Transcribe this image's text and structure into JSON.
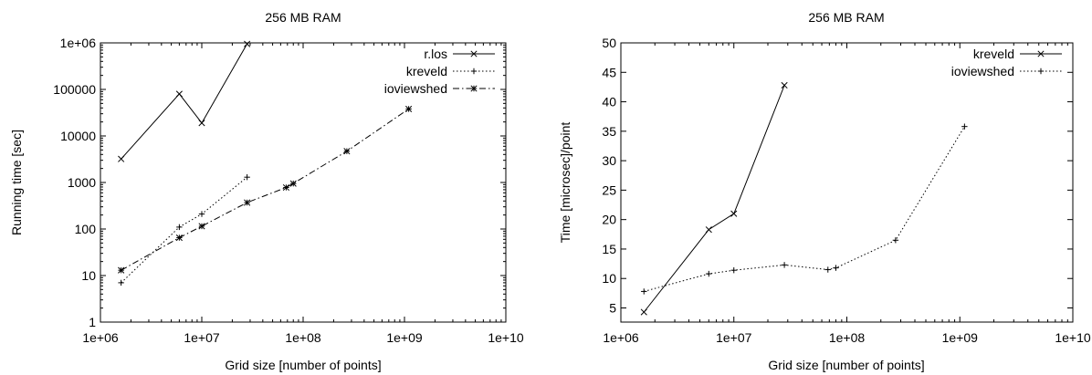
{
  "chart_data": [
    {
      "type": "line",
      "title": "256 MB RAM",
      "xlabel": "Grid size [number of points]",
      "ylabel": "Running time [sec]",
      "xscale": "log",
      "yscale": "log",
      "xlim": [
        1000000,
        10000000000
      ],
      "ylim": [
        1,
        1000000
      ],
      "xticks": [
        {
          "value": 1000000,
          "label": "1e+06"
        },
        {
          "value": 10000000,
          "label": "1e+07"
        },
        {
          "value": 100000000,
          "label": "1e+08"
        },
        {
          "value": 1000000000,
          "label": "1e+09"
        },
        {
          "value": 10000000000,
          "label": "1e+10"
        }
      ],
      "yticks": [
        {
          "value": 1,
          "label": "1"
        },
        {
          "value": 10,
          "label": "10"
        },
        {
          "value": 100,
          "label": "100"
        },
        {
          "value": 1000,
          "label": "1000"
        },
        {
          "value": 10000,
          "label": "10000"
        },
        {
          "value": 100000,
          "label": "100000"
        },
        {
          "value": 1000000,
          "label": "1e+06"
        }
      ],
      "grid": false,
      "legend_position": "top-right",
      "series": [
        {
          "name": "r.los",
          "marker": "x",
          "dash": "solid",
          "x": [
            1600000,
            6000000,
            10000000,
            28000000
          ],
          "y": [
            3200,
            80000,
            19000,
            950000
          ]
        },
        {
          "name": "kreveld",
          "marker": "+",
          "dash": "dotted",
          "x": [
            1600000,
            6000000,
            10000000,
            28000000
          ],
          "y": [
            7,
            110,
            210,
            1300
          ]
        },
        {
          "name": "ioviewshed",
          "marker": "star",
          "dash": "dashdot",
          "x": [
            1600000,
            6000000,
            10000000,
            28000000,
            68000000,
            80000000,
            270000000,
            1100000000
          ],
          "y": [
            13,
            65,
            115,
            370,
            780,
            950,
            4700,
            38000
          ]
        }
      ]
    },
    {
      "type": "line",
      "title": "256 MB RAM",
      "xlabel": "Grid size [number of points]",
      "ylabel": "Time [microsec]/point",
      "xscale": "log",
      "yscale": "linear",
      "xlim": [
        1000000,
        10000000000
      ],
      "ylim": [
        2.6,
        50
      ],
      "xticks": [
        {
          "value": 1000000,
          "label": "1e+06"
        },
        {
          "value": 10000000,
          "label": "1e+07"
        },
        {
          "value": 100000000,
          "label": "1e+08"
        },
        {
          "value": 1000000000,
          "label": "1e+09"
        },
        {
          "value": 10000000000,
          "label": "1e+10"
        }
      ],
      "yticks": [
        {
          "value": 5,
          "label": "5"
        },
        {
          "value": 10,
          "label": "10"
        },
        {
          "value": 15,
          "label": "15"
        },
        {
          "value": 20,
          "label": "20"
        },
        {
          "value": 25,
          "label": "25"
        },
        {
          "value": 30,
          "label": "30"
        },
        {
          "value": 35,
          "label": "35"
        },
        {
          "value": 40,
          "label": "40"
        },
        {
          "value": 45,
          "label": "45"
        },
        {
          "value": 50,
          "label": "50"
        }
      ],
      "grid": false,
      "legend_position": "top-right",
      "series": [
        {
          "name": "kreveld",
          "marker": "x",
          "dash": "solid",
          "x": [
            1600000,
            6000000,
            10000000,
            28000000
          ],
          "y": [
            4.3,
            18.3,
            21,
            42.8
          ]
        },
        {
          "name": "ioviewshed",
          "marker": "+",
          "dash": "dotted",
          "x": [
            1600000,
            6000000,
            10000000,
            28000000,
            68000000,
            80000000,
            270000000,
            1100000000
          ],
          "y": [
            7.8,
            10.8,
            11.4,
            12.3,
            11.5,
            11.8,
            16.5,
            35.8
          ]
        }
      ]
    }
  ]
}
